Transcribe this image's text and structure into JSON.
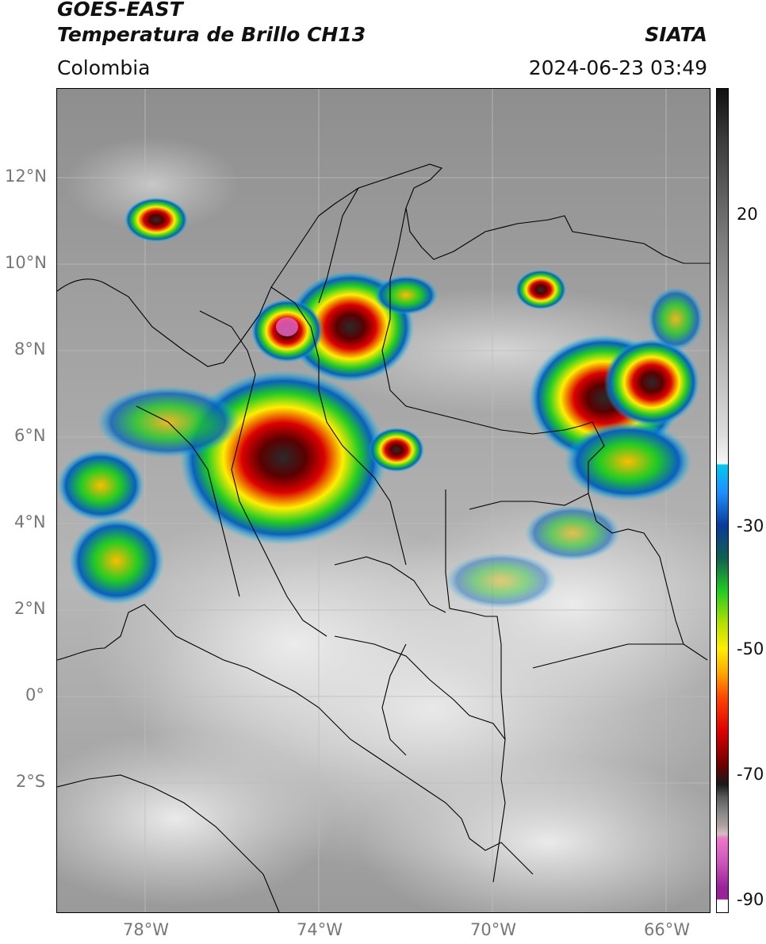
{
  "header": {
    "satellite": "GOES-EAST",
    "product": "Temperatura de Brillo CH13",
    "agency": "SIATA",
    "region": "Colombia",
    "timestamp": "2024-06-23 03:49"
  },
  "map": {
    "lat_ticks": [
      "12°N",
      "10°N",
      "8°N",
      "6°N",
      "4°N",
      "2°N",
      "0°",
      "2°S"
    ],
    "lon_ticks": [
      "78°W",
      "74°W",
      "70°W",
      "66°W"
    ],
    "extent": {
      "lon_min": -79.6,
      "lon_max": -64.6,
      "lat_min": -4.9,
      "lat_max": 14.0
    }
  },
  "colorbar": {
    "ticks": [
      "20",
      "-30",
      "-50",
      "-70",
      "-90"
    ],
    "range": [
      -92,
      34
    ]
  },
  "colors": {
    "warm_gray": "#8a8a8a",
    "cold_green": "#22cc22",
    "cold_yellow": "#ffee00",
    "cold_red": "#dd0000",
    "overshoot_pink": "#ee66cc"
  }
}
